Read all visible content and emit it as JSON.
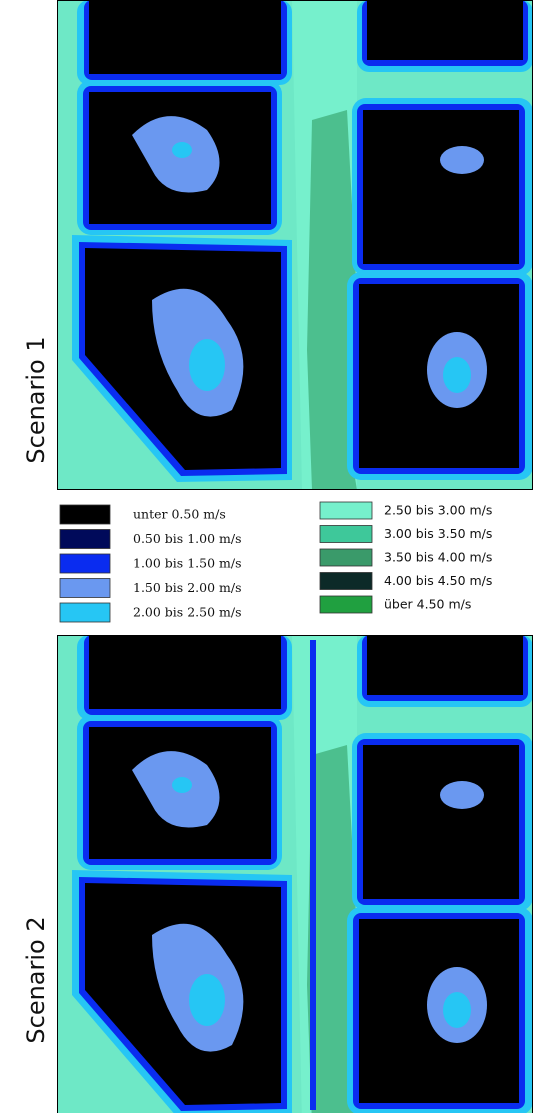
{
  "panels": [
    {
      "label": "Scenario 1"
    },
    {
      "label": "Scenario 2"
    }
  ],
  "legend": [
    {
      "label": "unter 0.50 m/s",
      "color": "#000000"
    },
    {
      "label": "0.50 bis 1.00 m/s",
      "color": "#000a5a"
    },
    {
      "label": "1.00 bis 1.50 m/s",
      "color": "#0a2cf0"
    },
    {
      "label": "1.50 bis 2.00 m/s",
      "color": "#6a98f0"
    },
    {
      "label": "2.00 bis 2.50 m/s",
      "color": "#26c6f4"
    },
    {
      "label": "2.50 bis 3.00 m/s",
      "color": "#76f0cc"
    },
    {
      "label": "3.00 bis 3.50 m/s",
      "color": "#3ec89a"
    },
    {
      "label": "3.50 bis 4.00 m/s",
      "color": "#3a9a6a"
    },
    {
      "label": "4.00 bis 4.50 m/s",
      "color": "#0c2a28"
    },
    {
      "label": "über 4.50 m/s",
      "color": "#20a040"
    }
  ]
}
